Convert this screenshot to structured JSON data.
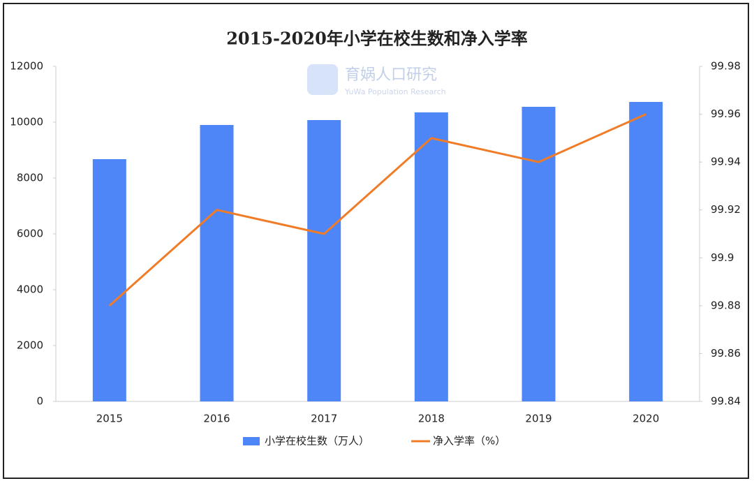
{
  "chart_data": {
    "type": "bar-line",
    "title": "2015-2020年小学在校生数和净入学率",
    "watermark": {
      "name": "育娲人口研究",
      "subtitle": "YuWa Population Research"
    },
    "categories": [
      "2015",
      "2016",
      "2017",
      "2018",
      "2019",
      "2020"
    ],
    "series": [
      {
        "name": "小学在校生数（万人）",
        "type": "bar",
        "color": "#4f86f7",
        "values": [
          8675,
          9900,
          10075,
          10350,
          10550,
          10725
        ]
      },
      {
        "name": "净入学率（%）",
        "type": "line",
        "axis": "y2",
        "color": "#f07c28",
        "values": [
          99.88,
          99.92,
          99.91,
          99.95,
          99.94,
          99.96
        ]
      }
    ],
    "ylim": [
      0,
      12000
    ],
    "yticks": [
      0,
      2000,
      4000,
      6000,
      8000,
      10000,
      12000
    ],
    "y2lim": [
      99.84,
      99.98
    ],
    "y2ticks": [
      99.84,
      99.86,
      99.88,
      99.9,
      99.92,
      99.94,
      99.96,
      99.98
    ],
    "legend": "bottom",
    "grid": false
  }
}
